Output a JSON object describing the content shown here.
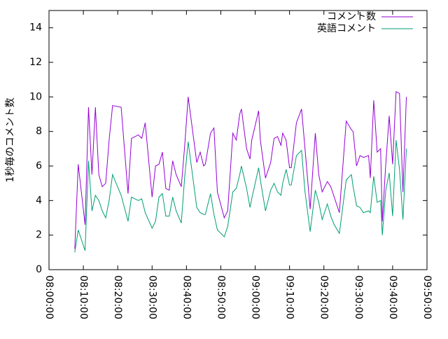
{
  "chart_data": {
    "type": "line",
    "ylabel": "1秒毎のコメント数",
    "x": [
      "08:07:30",
      "08:08:30",
      "08:10:30",
      "08:11:30",
      "08:12:30",
      "08:13:30",
      "08:14:30",
      "08:15:30",
      "08:16:30",
      "08:17:30",
      "08:18:30",
      "08:21:00",
      "08:23:00",
      "08:24:00",
      "08:26:00",
      "08:27:00",
      "08:28:00",
      "08:30:00",
      "08:31:00",
      "08:32:00",
      "08:33:00",
      "08:34:00",
      "08:35:00",
      "08:36:00",
      "08:37:00",
      "08:38:30",
      "08:39:30",
      "08:40:30",
      "08:43:00",
      "08:44:00",
      "08:45:00",
      "08:45:30",
      "08:47:00",
      "08:48:00",
      "08:49:00",
      "08:51:00",
      "08:52:00",
      "08:53:30",
      "08:54:30",
      "08:55:30",
      "08:56:00",
      "08:57:30",
      "08:58:30",
      "08:59:00",
      "09:01:00",
      "09:01:30",
      "09:03:00",
      "09:04:30",
      "09:05:30",
      "09:06:30",
      "09:07:30",
      "09:08:00",
      "09:09:00",
      "09:10:00",
      "09:10:30",
      "09:12:00",
      "09:13:30",
      "09:14:30",
      "09:16:00",
      "09:17:30",
      "09:18:30",
      "09:19:30",
      "09:21:00",
      "09:22:00",
      "09:23:00",
      "09:24:30",
      "09:26:30",
      "09:28:00",
      "09:28:30",
      "09:29:30",
      "09:30:30",
      "09:31:30",
      "09:33:00",
      "09:33:30",
      "09:34:30",
      "09:35:30",
      "09:36:30",
      "09:37:00",
      "09:38:00",
      "09:39:00",
      "09:40:00",
      "09:41:00",
      "09:42:00",
      "09:43:00",
      "09:44:00"
    ],
    "series": [
      {
        "name": "コメント数",
        "color": "#9400d3",
        "values": [
          1.2,
          6.1,
          2.6,
          9.4,
          5.5,
          9.4,
          5.5,
          4.8,
          5.0,
          7.5,
          9.5,
          9.4,
          4.4,
          7.6,
          7.8,
          7.6,
          8.5,
          4.2,
          6.0,
          6.1,
          6.8,
          4.7,
          4.6,
          6.3,
          5.5,
          4.8,
          7.2,
          10.0,
          6.2,
          6.8,
          6.0,
          6.1,
          7.9,
          8.2,
          4.5,
          3.0,
          3.4,
          7.9,
          7.5,
          9.0,
          9.3,
          7.0,
          6.4,
          7.5,
          9.2,
          7.5,
          5.3,
          6.2,
          7.6,
          7.7,
          7.2,
          7.9,
          7.5,
          5.9,
          5.9,
          8.5,
          9.3,
          7.0,
          3.5,
          7.9,
          5.5,
          4.5,
          5.1,
          4.8,
          4.2,
          3.3,
          8.6,
          8.1,
          8.0,
          6.0,
          6.6,
          6.5,
          6.6,
          5.3,
          9.8,
          6.8,
          7.0,
          2.8,
          6.1,
          8.9,
          6.1,
          10.3,
          10.2,
          4.5,
          10.0
        ]
      },
      {
        "name": "英語コメント",
        "color": "#009e73",
        "values": [
          1.0,
          2.3,
          1.1,
          6.3,
          3.4,
          4.3,
          4.0,
          3.4,
          3.0,
          4.0,
          5.5,
          4.3,
          2.8,
          4.2,
          4.0,
          4.1,
          3.3,
          2.4,
          2.8,
          4.2,
          4.4,
          3.1,
          3.1,
          4.2,
          3.4,
          2.7,
          5.4,
          7.4,
          3.6,
          3.3,
          3.2,
          3.2,
          4.4,
          3.2,
          2.3,
          1.9,
          2.5,
          4.5,
          4.7,
          5.5,
          6.0,
          4.7,
          3.6,
          4.1,
          5.9,
          5.2,
          3.4,
          4.6,
          5.0,
          4.5,
          4.3,
          5.0,
          5.8,
          4.9,
          4.9,
          6.6,
          6.9,
          4.5,
          2.2,
          4.6,
          3.9,
          2.9,
          3.8,
          3.1,
          2.6,
          2.1,
          5.2,
          5.5,
          4.8,
          3.7,
          3.6,
          3.3,
          3.4,
          3.3,
          5.4,
          3.9,
          4.0,
          2.0,
          4.6,
          5.6,
          3.1,
          7.5,
          5.8,
          2.9,
          7.0
        ]
      }
    ],
    "xlim": [
      "08:00:00",
      "09:50:00"
    ],
    "xticks": [
      "08:00:00",
      "08:10:00",
      "08:20:00",
      "08:30:00",
      "08:40:00",
      "08:50:00",
      "09:00:00",
      "09:10:00",
      "09:20:00",
      "09:30:00",
      "09:40:00",
      "09:50:00"
    ],
    "ylim": [
      0,
      15
    ],
    "yticks": [
      0,
      2,
      4,
      6,
      8,
      10,
      12,
      14
    ],
    "legend": "top-right"
  }
}
